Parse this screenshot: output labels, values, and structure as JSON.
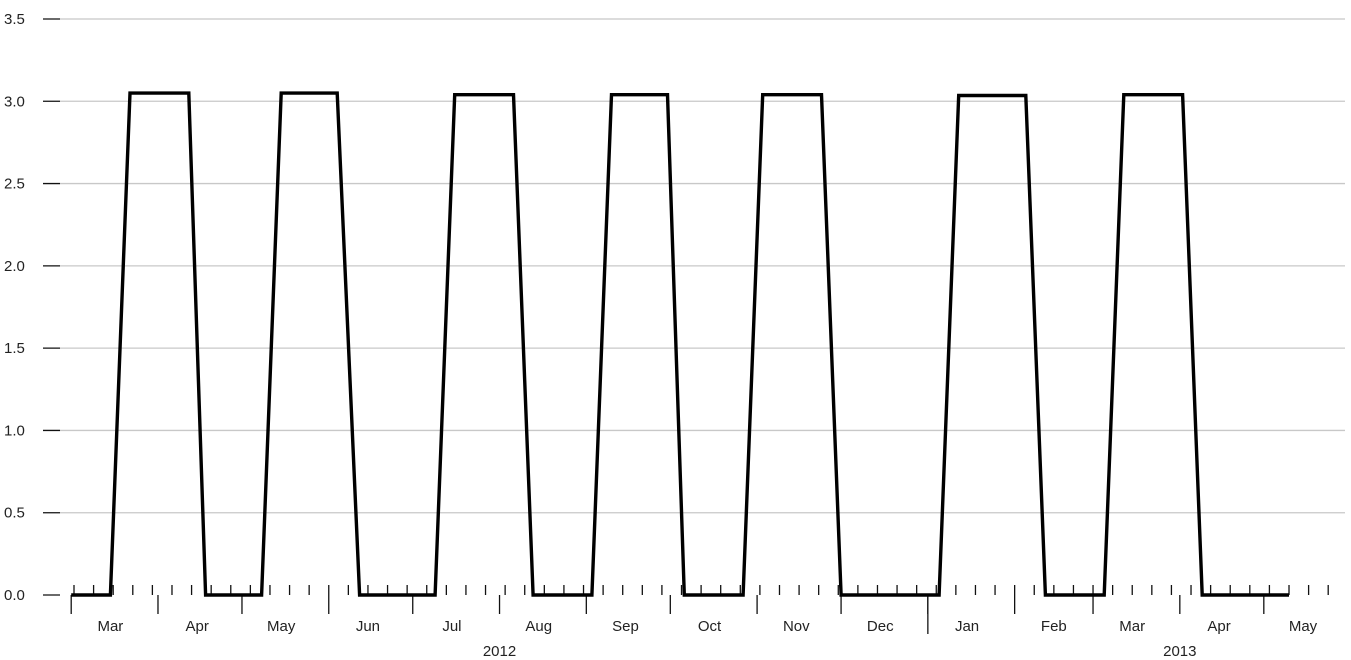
{
  "chart_data": {
    "type": "line",
    "title": "",
    "xlabel": "",
    "ylabel": "",
    "ylim": [
      0,
      3.5
    ],
    "xlim": [
      "2012-02-26",
      "2013-05-30"
    ],
    "grid": true,
    "legend": "none",
    "y_ticks": [
      "0.0",
      "0.5",
      "1.0",
      "1.5",
      "2.0",
      "2.5",
      "3.0",
      "3.5"
    ],
    "month_labels": [
      {
        "label": "Mar",
        "date": "2012-03-15"
      },
      {
        "label": "Apr",
        "date": "2012-04-15"
      },
      {
        "label": "May",
        "date": "2012-05-15"
      },
      {
        "label": "Jun",
        "date": "2012-06-15"
      },
      {
        "label": "Jul",
        "date": "2012-07-15"
      },
      {
        "label": "Aug",
        "date": "2012-08-15"
      },
      {
        "label": "Sep",
        "date": "2012-09-15"
      },
      {
        "label": "Oct",
        "date": "2012-10-15"
      },
      {
        "label": "Nov",
        "date": "2012-11-15"
      },
      {
        "label": "Dec",
        "date": "2012-12-15"
      },
      {
        "label": "Jan",
        "date": "2013-01-15"
      },
      {
        "label": "Feb",
        "date": "2013-02-15"
      },
      {
        "label": "Mar",
        "date": "2013-03-15"
      },
      {
        "label": "Apr",
        "date": "2013-04-15"
      },
      {
        "label": "May",
        "date": "2013-05-15"
      }
    ],
    "year_labels": [
      {
        "label": "2012",
        "date": "2012-08-01"
      },
      {
        "label": "2013",
        "date": "2013-04-01"
      }
    ],
    "series": [
      {
        "x": [
          "2012-03-01",
          "2012-03-15",
          "2012-03-22",
          "2012-04-12",
          "2012-04-18",
          "2012-05-08",
          "2012-05-15",
          "2012-06-04",
          "2012-06-12",
          "2012-07-09",
          "2012-07-16",
          "2012-08-06",
          "2012-08-13",
          "2012-09-03",
          "2012-09-10",
          "2012-09-30",
          "2012-10-06",
          "2012-10-27",
          "2012-11-03",
          "2012-11-24",
          "2012-12-01",
          "2013-01-05",
          "2013-01-12",
          "2013-02-05",
          "2013-02-12",
          "2013-03-05",
          "2013-03-12",
          "2013-04-02",
          "2013-04-09",
          "2013-05-10"
        ],
        "y": [
          0,
          0,
          3.05,
          3.05,
          0,
          0,
          3.05,
          3.05,
          0,
          0,
          3.04,
          3.04,
          0,
          0,
          3.04,
          3.04,
          0,
          0,
          3.04,
          3.04,
          0,
          0,
          3.035,
          3.035,
          0,
          0,
          3.04,
          3.04,
          0,
          0
        ]
      }
    ]
  }
}
